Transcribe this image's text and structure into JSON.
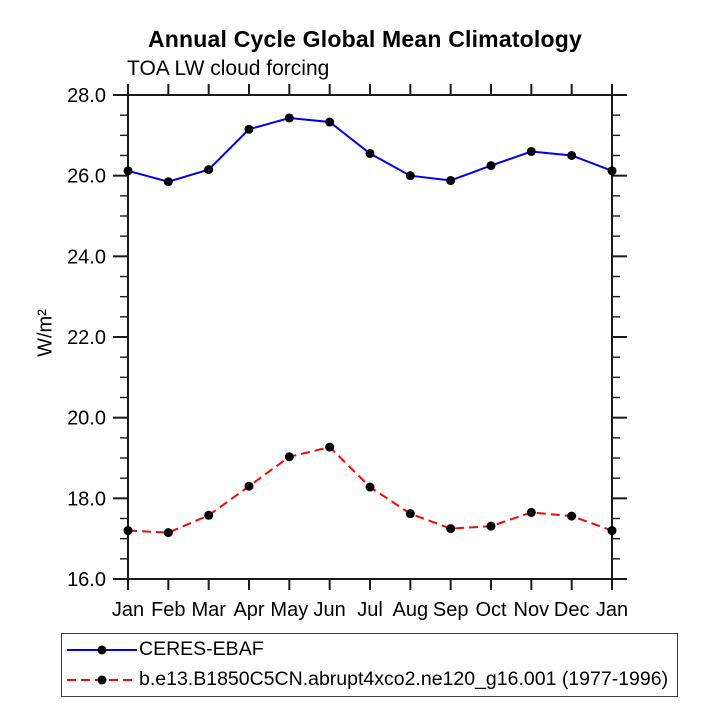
{
  "title": "Annual Cycle Global Mean Climatology",
  "subtitle": "TOA LW cloud forcing",
  "colors": {
    "axis": "#1a1a1a",
    "background": "#ffffff",
    "marker": "#000000",
    "series_blue": "#0000f0",
    "series_red": "#f50800"
  },
  "chart_data": {
    "type": "line",
    "title": "Annual Cycle Global Mean Climatology",
    "subtitle": "TOA LW cloud forcing",
    "xlabel": "",
    "ylabel": "W/m²",
    "ylim": [
      16.0,
      28.0
    ],
    "ytick_major_step": 2.0,
    "ytick_minor_step": 0.5,
    "ytick_labels": [
      "16.0",
      "18.0",
      "20.0",
      "22.0",
      "24.0",
      "26.0",
      "28.0"
    ],
    "grid": false,
    "legend_position": "bottom-left-framed-box",
    "categories": [
      "Jan",
      "Feb",
      "Mar",
      "Apr",
      "May",
      "Jun",
      "Jul",
      "Aug",
      "Sep",
      "Oct",
      "Nov",
      "Dec",
      "Jan"
    ],
    "series": [
      {
        "name": "CERES-EBAF",
        "color": "#0000f0",
        "line_style": "solid",
        "marker": "filled-circle",
        "marker_color": "#000000",
        "values": [
          26.12,
          25.85,
          26.15,
          27.15,
          27.43,
          27.33,
          26.55,
          26.0,
          25.88,
          26.25,
          26.6,
          26.5,
          26.12
        ]
      },
      {
        "name": "b.e13.B1850C5CN.abrupt4xco2.ne120_g16.001 (1977-1996)",
        "color": "#f50800",
        "line_style": "dashed",
        "marker": "filled-circle",
        "marker_color": "#000000",
        "values": [
          17.2,
          17.15,
          17.58,
          18.3,
          19.03,
          19.27,
          18.28,
          17.62,
          17.25,
          17.31,
          17.65,
          17.56,
          17.2
        ]
      }
    ]
  }
}
